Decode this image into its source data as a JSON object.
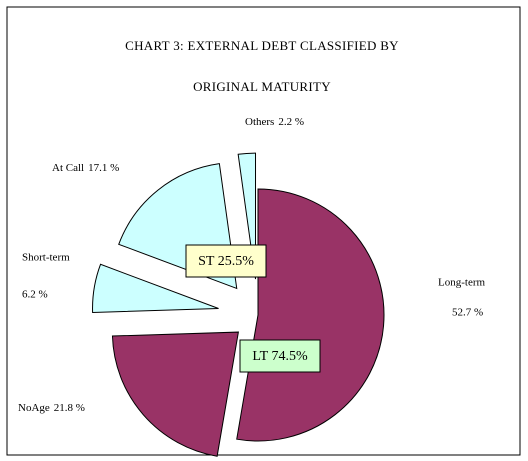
{
  "chart_data": {
    "type": "pie",
    "title": [
      "CHART 3: EXTERNAL DEBT CLASSIFIED BY",
      "ORIGINAL MATURITY"
    ],
    "categories": [
      "Long-term",
      "NoAge",
      "Short-term",
      "At Call",
      "Others"
    ],
    "values": [
      52.7,
      21.8,
      6.2,
      17.1,
      2.2
    ],
    "value_labels": [
      "52.7 %",
      "21.8 %",
      "6.2 %",
      "17.1 %",
      "2.2 %"
    ],
    "colors": [
      "#993366",
      "#993366",
      "#ccffff",
      "#ccffff",
      "#ccffff"
    ],
    "annotations": [
      "ST 25.5%",
      "LT 74.5%"
    ]
  }
}
